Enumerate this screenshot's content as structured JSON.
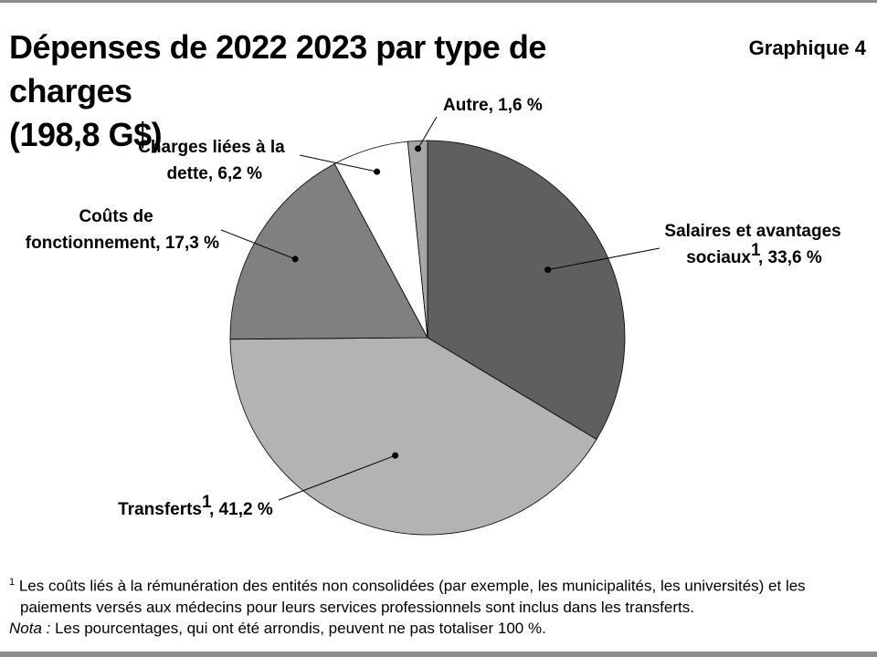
{
  "title_line1": "Dépenses de 2022 2023 par type de charges",
  "title_line2": "(198,8 G$)",
  "graph_label": "Graphique 4",
  "chart_data": {
    "type": "pie",
    "slices": [
      {
        "label": "Salaires et avantages sociaux",
        "footnote_ref": "1",
        "value": 33.6,
        "value_text": "33,6 %",
        "color": "#5f5f5f"
      },
      {
        "label": "Transferts",
        "footnote_ref": "1",
        "value": 41.2,
        "value_text": "41,2 %",
        "color": "#b3b3b3"
      },
      {
        "label": "Coûts de fonctionnement",
        "footnote_ref": "",
        "value": 17.3,
        "value_text": "17,3 %",
        "color": "#808080"
      },
      {
        "label": "Charges liées à la dette",
        "footnote_ref": "",
        "value": 6.2,
        "value_text": "6,2 %",
        "color": "#ffffff"
      },
      {
        "label": "Autre",
        "footnote_ref": "",
        "value": 1.6,
        "value_text": "1,6 %",
        "color": "#a6a6a6"
      }
    ]
  },
  "label_text": {
    "salaires_l1": "Salaires et avantages",
    "salaires_l2": "sociaux",
    "salaires_tail": ", 33,6 %",
    "transferts": "Transferts",
    "transferts_tail": ", 41,2 %",
    "couts_l1": "Coûts de",
    "couts_l2": "fonctionnement, 17,3 %",
    "dette_l1": "Charges liées à la",
    "dette_l2": "dette, 6,2 %",
    "autre": "Autre, 1,6 %",
    "sup": "1"
  },
  "footnotes": {
    "sup": "1",
    "line1": " Les coûts liés à la rémunération des entités non consolidées (par exemple, les municipalités, les universités) et les",
    "line2": "paiements versés aux médecins pour leurs services professionnels sont inclus dans les transferts.",
    "nota_label": "Nota :",
    "nota_text": " Les pourcentages, qui ont été arrondis, peuvent ne pas totaliser 100 %."
  }
}
